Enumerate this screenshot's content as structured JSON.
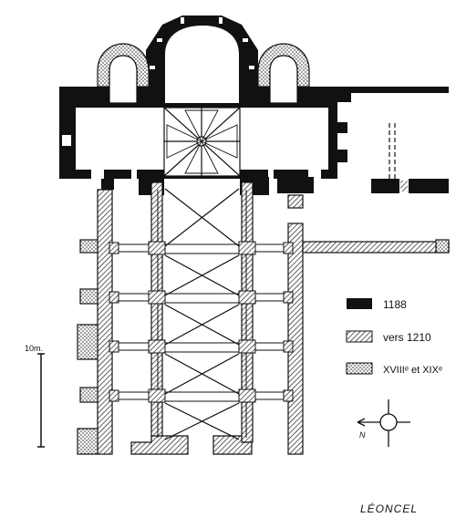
{
  "legend": {
    "items": [
      {
        "label": "1188",
        "pattern": "solid"
      },
      {
        "label": "vers 1210",
        "pattern": "hatch"
      },
      {
        "label": "XVIIIᵉ et XIXᵉ",
        "pattern": "dots"
      }
    ]
  },
  "scale": {
    "label": "10m."
  },
  "compass": {
    "north_label": "N"
  },
  "caption": "LÉONCEL",
  "colors": {
    "ink": "#111111",
    "paper": "#ffffff"
  }
}
